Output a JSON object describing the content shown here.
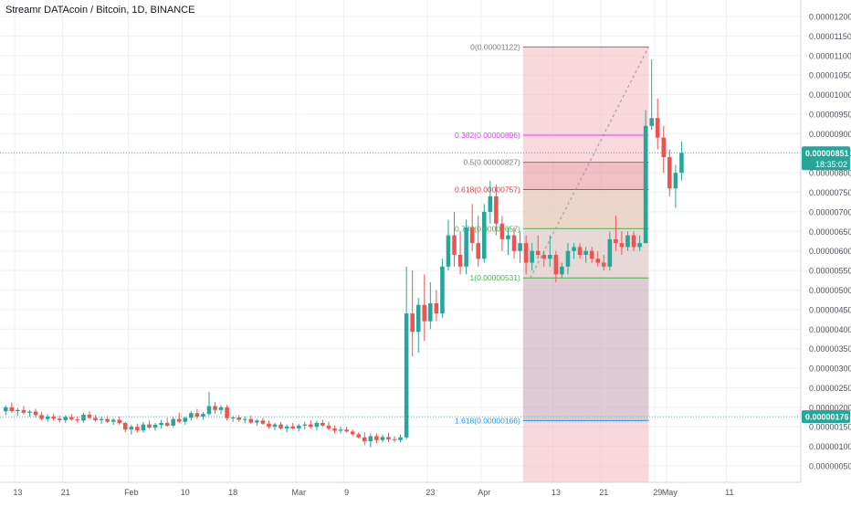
{
  "chart_title": "Streamr DATAcoin / Bitcoin, 1D, BINANCE",
  "colors": {
    "up": "#26a69a",
    "down": "#ef5350",
    "grid": "#eef0f3",
    "axis_text": "#50535e",
    "price_line": "#4bb0b0",
    "fib_line_0": "#787b86",
    "fib_line_0382": "#e040fb",
    "fib_line_05": "#787b86",
    "fib_line_0618": "#f23645",
    "fib_line_0786": "#4caf50",
    "fib_line_1": "#4caf50",
    "fib_line_1618": "#2196f3",
    "box_upper": "#f4b8bf",
    "box_lower": "#c9a9b6"
  },
  "chart_data": {
    "type": "candlestick",
    "title": "Streamr DATAcoin / Bitcoin, 1D, BINANCE",
    "ylim": [
      1e-07,
      1.2e-06
    ],
    "y_ticks": [
      {
        "value": 5e-07,
        "label": "0.00000050"
      },
      {
        "value": 1e-06,
        "label": "0.00000100"
      },
      {
        "value": 1.5e-06,
        "label": "0.00000150"
      },
      {
        "value": 2e-06,
        "label": "0.00000200"
      },
      {
        "value": 2.5e-06,
        "label": "0.00000250"
      },
      {
        "value": 3e-06,
        "label": "0.00000300"
      },
      {
        "value": 3.5e-06,
        "label": "0.00000350"
      },
      {
        "value": 4e-06,
        "label": "0.00000400"
      },
      {
        "value": 4.5e-06,
        "label": "0.00000450"
      },
      {
        "value": 5e-06,
        "label": "0.00000500"
      },
      {
        "value": 5.5e-06,
        "label": "0.00000550"
      },
      {
        "value": 6e-06,
        "label": "0.00000600"
      },
      {
        "value": 6.5e-06,
        "label": "0.00000650"
      },
      {
        "value": 7e-06,
        "label": "0.00000700"
      },
      {
        "value": 7.5e-06,
        "label": "0.00000750"
      },
      {
        "value": 8e-06,
        "label": "0.00000800"
      },
      {
        "value": 8.5e-06,
        "label": "0.00000850"
      },
      {
        "value": 9e-06,
        "label": "0.00000900"
      },
      {
        "value": 9.5e-06,
        "label": "0.00000950"
      },
      {
        "value": 1e-05,
        "label": "0.00001000"
      },
      {
        "value": 1.05e-05,
        "label": "0.00001050"
      },
      {
        "value": 1.1e-05,
        "label": "0.00001100"
      },
      {
        "value": 1.15e-05,
        "label": "0.00001150"
      },
      {
        "value": 1.2e-05,
        "label": "0.00001200"
      }
    ],
    "x_ticks": [
      {
        "bar": 2,
        "label": "13"
      },
      {
        "bar": 10,
        "label": "21"
      },
      {
        "bar": 21,
        "label": "Feb"
      },
      {
        "bar": 30,
        "label": "10"
      },
      {
        "bar": 38,
        "label": "18"
      },
      {
        "bar": 49,
        "label": "Mar"
      },
      {
        "bar": 57,
        "label": "9"
      },
      {
        "bar": 71,
        "label": "23"
      },
      {
        "bar": 80,
        "label": "Apr"
      },
      {
        "bar": 92,
        "label": "13"
      },
      {
        "bar": 100,
        "label": "21"
      },
      {
        "bar": 109,
        "label": "29"
      },
      {
        "bar": 111,
        "label": "May"
      },
      {
        "bar": 121,
        "label": "11"
      }
    ],
    "price_labels": [
      {
        "value": 8.51e-06,
        "label": "0.00000851",
        "sub": "18:35:02",
        "color": "#26a69a"
      },
      {
        "value": 1.76e-06,
        "label": "0.00000176",
        "sub": "",
        "color": "#26a69a"
      }
    ],
    "fib_levels": [
      {
        "ratio_label": "0(0.00001122)",
        "value": 1.122e-05,
        "color": "#787b86"
      },
      {
        "ratio_label": "0.382(0.00000896)",
        "value": 8.96e-06,
        "color": "#e040fb"
      },
      {
        "ratio_label": "0.5(0.00000827)",
        "value": 8.27e-06,
        "color": "#787b86"
      },
      {
        "ratio_label": "0.618(0.00000757)",
        "value": 7.57e-06,
        "color": "#f23645"
      },
      {
        "ratio_label": "0.786(0.00000657)",
        "value": 6.57e-06,
        "color": "#4caf50"
      },
      {
        "ratio_label": "1(0.00000531)",
        "value": 5.31e-06,
        "color": "#4caf50"
      },
      {
        "ratio_label": "1.618(0.00000166)",
        "value": 1.66e-06,
        "color": "#2196f3"
      }
    ],
    "fib_start_bar": 87,
    "fib_end_bar": 108,
    "box_start_bar": 87,
    "box_end_bar": 108,
    "candles": [
      [
        1.9e-06,
        2.05e-06,
        1.8e-06,
        2e-06
      ],
      [
        2e-06,
        2.12e-06,
        1.86e-06,
        1.9e-06
      ],
      [
        1.9e-06,
        1.98e-06,
        1.78e-06,
        1.93e-06
      ],
      [
        1.93e-06,
        2.03e-06,
        1.82e-06,
        1.86e-06
      ],
      [
        1.86e-06,
        1.93e-06,
        1.76e-06,
        1.89e-06
      ],
      [
        1.89e-06,
        1.96e-06,
        1.73e-06,
        1.8e-06
      ],
      [
        1.8e-06,
        1.88e-06,
        1.66e-06,
        1.7e-06
      ],
      [
        1.7e-06,
        1.82e-06,
        1.63e-06,
        1.76e-06
      ],
      [
        1.76e-06,
        1.83e-06,
        1.66e-06,
        1.71e-06
      ],
      [
        1.71e-06,
        1.78e-06,
        1.61e-06,
        1.67e-06
      ],
      [
        1.67e-06,
        1.8e-06,
        1.6e-06,
        1.75e-06
      ],
      [
        1.75e-06,
        1.83e-06,
        1.66e-06,
        1.69e-06
      ],
      [
        1.69e-06,
        1.76e-06,
        1.6e-06,
        1.66e-06
      ],
      [
        1.66e-06,
        1.86e-06,
        1.6e-06,
        1.81e-06
      ],
      [
        1.81e-06,
        1.9e-06,
        1.7e-06,
        1.73e-06
      ],
      [
        1.73e-06,
        1.8e-06,
        1.63e-06,
        1.67e-06
      ],
      [
        1.67e-06,
        1.76e-06,
        1.58e-06,
        1.7e-06
      ],
      [
        1.7e-06,
        1.78e-06,
        1.6e-06,
        1.63e-06
      ],
      [
        1.63e-06,
        1.72e-06,
        1.55e-06,
        1.68e-06
      ],
      [
        1.68e-06,
        1.76e-06,
        1.56e-06,
        1.6e-06
      ],
      [
        1.6e-06,
        1.63e-06,
        1.36e-06,
        1.43e-06
      ],
      [
        1.43e-06,
        1.56e-06,
        1.3e-06,
        1.5e-06
      ],
      [
        1.5e-06,
        1.58e-06,
        1.36e-06,
        1.41e-06
      ],
      [
        1.41e-06,
        1.63e-06,
        1.35e-06,
        1.56e-06
      ],
      [
        1.56e-06,
        1.66e-06,
        1.45e-06,
        1.48e-06
      ],
      [
        1.48e-06,
        1.6e-06,
        1.4e-06,
        1.55e-06
      ],
      [
        1.55e-06,
        1.68e-06,
        1.46e-06,
        1.6e-06
      ],
      [
        1.6e-06,
        1.73e-06,
        1.5e-06,
        1.53e-06
      ],
      [
        1.53e-06,
        1.76e-06,
        1.48e-06,
        1.7e-06
      ],
      [
        1.7e-06,
        1.86e-06,
        1.6e-06,
        1.63e-06
      ],
      [
        1.63e-06,
        1.76e-06,
        1.55e-06,
        1.73e-06
      ],
      [
        1.73e-06,
        1.9e-06,
        1.66e-06,
        1.85e-06
      ],
      [
        1.85e-06,
        1.96e-06,
        1.7e-06,
        1.76e-06
      ],
      [
        1.76e-06,
        1.88e-06,
        1.68e-06,
        1.83e-06
      ],
      [
        1.83e-06,
        2.4e-06,
        1.78e-06,
        2.03e-06
      ],
      [
        2.03e-06,
        2.13e-06,
        1.83e-06,
        1.93e-06
      ],
      [
        1.93e-06,
        2.05e-06,
        1.83e-06,
        2e-06
      ],
      [
        2e-06,
        2.06e-06,
        1.66e-06,
        1.72e-06
      ],
      [
        1.72e-06,
        1.78e-06,
        1.63e-06,
        1.74e-06
      ],
      [
        1.74e-06,
        1.8e-06,
        1.63e-06,
        1.68e-06
      ],
      [
        1.68e-06,
        1.76e-06,
        1.6e-06,
        1.7e-06
      ],
      [
        1.7e-06,
        1.78e-06,
        1.58e-06,
        1.61e-06
      ],
      [
        1.61e-06,
        1.7e-06,
        1.53e-06,
        1.66e-06
      ],
      [
        1.66e-06,
        1.73e-06,
        1.55e-06,
        1.58e-06
      ],
      [
        1.58e-06,
        1.66e-06,
        1.46e-06,
        1.5e-06
      ],
      [
        1.5e-06,
        1.6e-06,
        1.41e-06,
        1.56e-06
      ],
      [
        1.56e-06,
        1.63e-06,
        1.43e-06,
        1.46e-06
      ],
      [
        1.46e-06,
        1.56e-06,
        1.36e-06,
        1.51e-06
      ],
      [
        1.51e-06,
        1.6e-06,
        1.43e-06,
        1.46e-06
      ],
      [
        1.46e-06,
        1.58e-06,
        1.38e-06,
        1.53e-06
      ],
      [
        1.53e-06,
        1.63e-06,
        1.43e-06,
        1.56e-06
      ],
      [
        1.56e-06,
        1.66e-06,
        1.46e-06,
        1.5e-06
      ],
      [
        1.5e-06,
        1.66e-06,
        1.41e-06,
        1.6e-06
      ],
      [
        1.6e-06,
        1.68e-06,
        1.5e-06,
        1.53e-06
      ],
      [
        1.53e-06,
        1.63e-06,
        1.41e-06,
        1.46e-06
      ],
      [
        1.46e-06,
        1.53e-06,
        1.33e-06,
        1.4e-06
      ],
      [
        1.4e-06,
        1.5e-06,
        1.33e-06,
        1.43e-06
      ],
      [
        1.43e-06,
        1.5e-06,
        1.35e-06,
        1.38e-06
      ],
      [
        1.38e-06,
        1.43e-06,
        1.26e-06,
        1.31e-06
      ],
      [
        1.31e-06,
        1.36e-06,
        1.2e-06,
        1.23e-06
      ],
      [
        1.23e-06,
        1.36e-06,
        1.03e-06,
        1.13e-06
      ],
      [
        1.13e-06,
        1.33e-06,
        9.8e-07,
        1.26e-06
      ],
      [
        1.26e-06,
        1.33e-06,
        1.08e-06,
        1.16e-06
      ],
      [
        1.16e-06,
        1.3e-06,
        1.1e-06,
        1.24e-06
      ],
      [
        1.24e-06,
        1.35e-06,
        1.1e-06,
        1.18e-06
      ],
      [
        1.18e-06,
        1.26e-06,
        1.1e-06,
        1.16e-06
      ],
      [
        1.16e-06,
        1.3e-06,
        1.1e-06,
        1.23e-06
      ],
      [
        1.23e-06,
        5.6e-06,
        1.18e-06,
        4.4e-06
      ],
      [
        4.4e-06,
        5.5e-06,
        3.3e-06,
        3.93e-06
      ],
      [
        3.93e-06,
        4.8e-06,
        3.4e-06,
        4.62e-06
      ],
      [
        4.62e-06,
        5.4e-06,
        3.7e-06,
        4.2e-06
      ],
      [
        4.2e-06,
        5.2e-06,
        4e-06,
        4.66e-06
      ],
      [
        4.66e-06,
        5e-06,
        4.2e-06,
        4.4e-06
      ],
      [
        4.4e-06,
        5.8e-06,
        4.3e-06,
        5.6e-06
      ],
      [
        5.6e-06,
        6.8e-06,
        5.5e-06,
        6.4e-06
      ],
      [
        6.4e-06,
        7e-06,
        5.6e-06,
        5.9e-06
      ],
      [
        5.9e-06,
        6.5e-06,
        5.4e-06,
        5.6e-06
      ],
      [
        5.6e-06,
        6.8e-06,
        5.4e-06,
        6.6e-06
      ],
      [
        6.6e-06,
        7.2e-06,
        6e-06,
        6.2e-06
      ],
      [
        6.2e-06,
        6.9e-06,
        5.6e-06,
        5.8e-06
      ],
      [
        5.8e-06,
        7.2e-06,
        5.7e-06,
        7e-06
      ],
      [
        7e-06,
        7.8e-06,
        6.7e-06,
        7.4e-06
      ],
      [
        7.4e-06,
        7.7e-06,
        6.4e-06,
        6.7e-06
      ],
      [
        6.7e-06,
        6.9e-06,
        6e-06,
        6.3e-06
      ],
      [
        6.3e-06,
        6.6e-06,
        5.9e-06,
        6.4e-06
      ],
      [
        6.4e-06,
        6.6e-06,
        5.8e-06,
        6e-06
      ],
      [
        6e-06,
        6.5e-06,
        5.7e-06,
        6.2e-06
      ],
      [
        6.2e-06,
        6.4e-06,
        5.4e-06,
        5.7e-06
      ],
      [
        5.7e-06,
        6.2e-06,
        5.5e-06,
        6e-06
      ],
      [
        6e-06,
        6.4e-06,
        5.8e-06,
        5.9e-06
      ],
      [
        5.9e-06,
        6e-06,
        5.6e-06,
        5.8e-06
      ],
      [
        5.8e-06,
        6.4e-06,
        5.6e-06,
        5.9e-06
      ],
      [
        5.9e-06,
        6e-06,
        5.2e-06,
        5.4e-06
      ],
      [
        5.4e-06,
        5.7e-06,
        5.3e-06,
        5.6e-06
      ],
      [
        5.6e-06,
        6.2e-06,
        5.4e-06,
        6e-06
      ],
      [
        6e-06,
        6.2e-06,
        5.8e-06,
        6.1e-06
      ],
      [
        6.1e-06,
        6.2e-06,
        5.8e-06,
        5.9e-06
      ],
      [
        5.9e-06,
        6.1e-06,
        5.7e-06,
        6e-06
      ],
      [
        6e-06,
        6.1e-06,
        5.7e-06,
        5.8e-06
      ],
      [
        5.8e-06,
        6e-06,
        5.6e-06,
        5.7e-06
      ],
      [
        5.7e-06,
        5.9e-06,
        5.5e-06,
        5.6e-06
      ],
      [
        5.6e-06,
        6.5e-06,
        5.5e-06,
        6.3e-06
      ],
      [
        6.3e-06,
        6.9e-06,
        6e-06,
        6.2e-06
      ],
      [
        6.2e-06,
        6.5e-06,
        5.9e-06,
        6.1e-06
      ],
      [
        6.1e-06,
        6.5e-06,
        6e-06,
        6.4e-06
      ],
      [
        6.4e-06,
        6.5e-06,
        6e-06,
        6.1e-06
      ],
      [
        6.1e-06,
        6.4e-06,
        6e-06,
        6.2e-06
      ],
      [
        6.2e-06,
        9.6e-06,
        6.2e-06,
        9.2e-06
      ],
      [
        9.2e-06,
        1.09e-05,
        9.1e-06,
        9.4e-06
      ],
      [
        9.4e-06,
        9.9e-06,
        8.6e-06,
        8.9e-06
      ],
      [
        8.9e-06,
        9.2e-06,
        8e-06,
        8.4e-06
      ],
      [
        8.4e-06,
        8.6e-06,
        7.4e-06,
        7.6e-06
      ],
      [
        7.6e-06,
        8.2e-06,
        7.1e-06,
        8e-06
      ],
      [
        8e-06,
        8.8e-06,
        7.8e-06,
        8.51e-06
      ]
    ]
  }
}
